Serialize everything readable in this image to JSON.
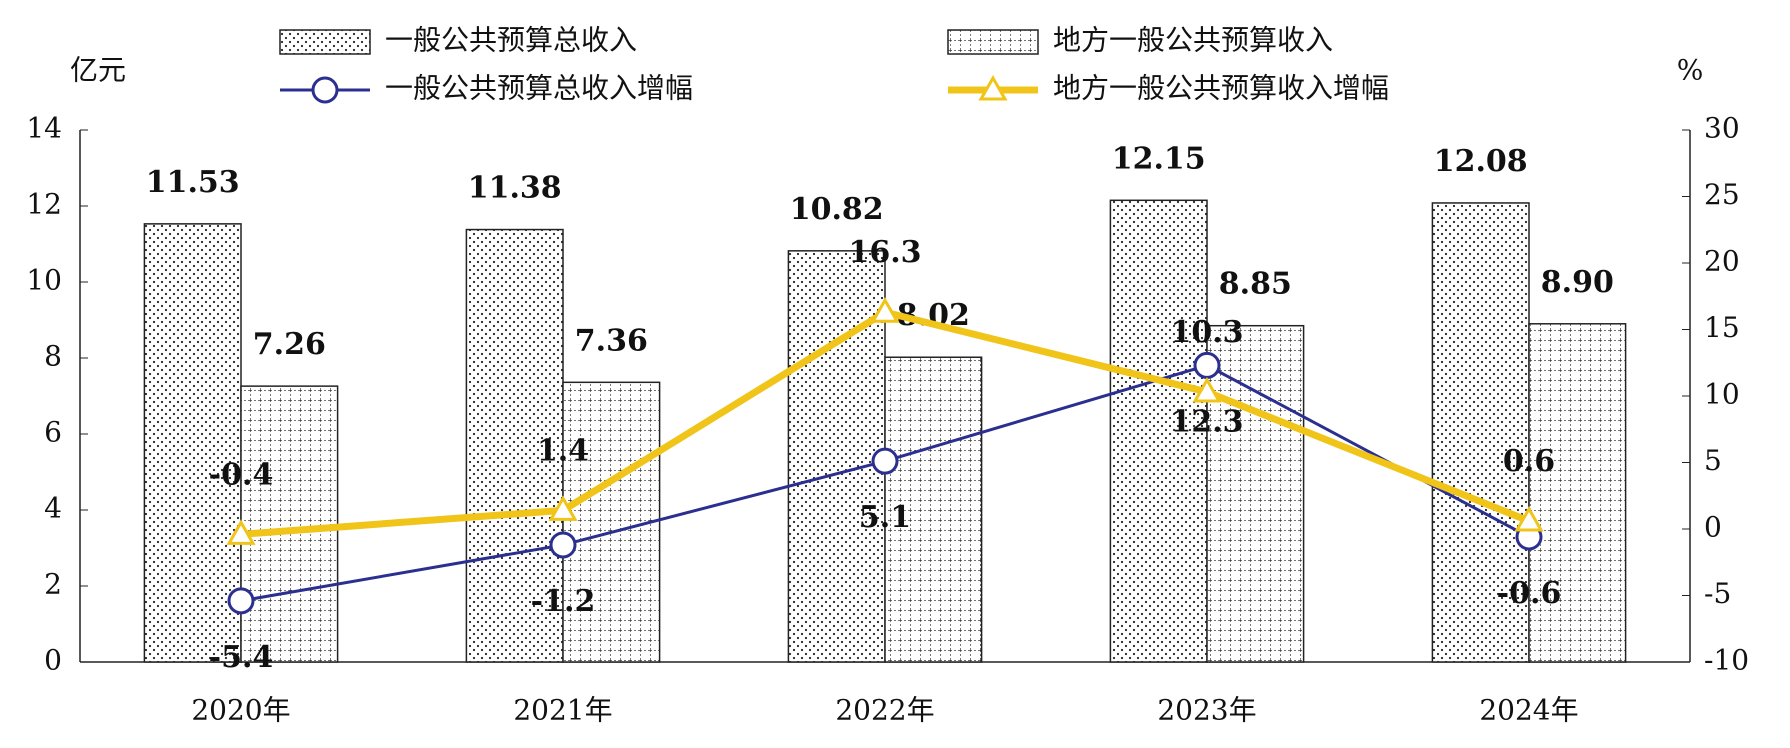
{
  "chart_data": {
    "type": "bar-line",
    "categories": [
      "2020年",
      "2021年",
      "2022年",
      "2023年",
      "2024年"
    ],
    "y_label": "亿元",
    "y2_label": "%",
    "ylim": [
      0,
      14
    ],
    "yticks": [
      0,
      2,
      4,
      6,
      8,
      10,
      12,
      14
    ],
    "y2lim": [
      -10,
      30
    ],
    "y2ticks": [
      -10,
      -5,
      0,
      5,
      10,
      15,
      20,
      25,
      30
    ],
    "legend": "top",
    "grid": false,
    "series": [
      {
        "name": "一般公共预算总收入",
        "type": "bar",
        "pattern": "dots",
        "color": "#222222",
        "values": [
          11.53,
          11.38,
          10.82,
          12.15,
          12.08
        ],
        "value_labels": [
          "11.53",
          "11.38",
          "10.82",
          "12.15",
          "12.08"
        ]
      },
      {
        "name": "地方一般公共预算收入",
        "type": "bar",
        "pattern": "grid",
        "color": "#222222",
        "values": [
          7.26,
          7.36,
          8.02,
          8.85,
          8.9
        ],
        "value_labels": [
          "7.26",
          "7.36",
          "8.02",
          "8.85",
          "8.90"
        ]
      },
      {
        "name": "一般公共预算总收入增幅",
        "type": "line",
        "axis": "y2",
        "marker": "circle",
        "color": "#2b2f8f",
        "values": [
          -5.4,
          -1.2,
          5.1,
          12.3,
          -0.6
        ]
      },
      {
        "name": "地方一般公共预算收入增幅",
        "type": "line",
        "axis": "y2",
        "marker": "triangle",
        "color": "#f0c419",
        "values": [
          -0.4,
          1.4,
          16.3,
          10.3,
          0.6
        ]
      }
    ]
  }
}
